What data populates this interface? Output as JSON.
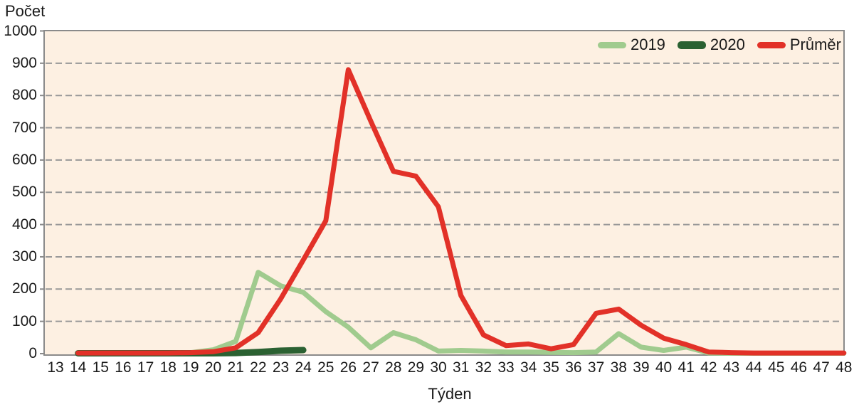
{
  "chart_data": {
    "type": "line",
    "title": "",
    "ylabel": "Počet",
    "xlabel": "Týden",
    "ylim": [
      0,
      1000
    ],
    "y_ticks": [
      0,
      100,
      200,
      300,
      400,
      500,
      600,
      700,
      800,
      900,
      1000
    ],
    "x_ticks": [
      13,
      14,
      15,
      16,
      17,
      18,
      19,
      20,
      21,
      22,
      23,
      24,
      25,
      26,
      27,
      28,
      29,
      30,
      31,
      32,
      33,
      34,
      35,
      36,
      37,
      38,
      39,
      40,
      41,
      42,
      43,
      44,
      45,
      46,
      47,
      48
    ],
    "grid": "horizontal-dashed",
    "legend_position": "top-right-inside",
    "plot_bg": "#fdf0e2",
    "border_color": "#8a8a8a",
    "grid_color": "#989898",
    "text_color": "#1a1a1a",
    "series": [
      {
        "name": "2019",
        "color": "#a0cb8e",
        "line_width": 7,
        "x": [
          14,
          15,
          16,
          17,
          18,
          19,
          20,
          21,
          22,
          23,
          24,
          25,
          26,
          27,
          28,
          29,
          30,
          31,
          32,
          33,
          34,
          35,
          36,
          37,
          38,
          39,
          40,
          41,
          42,
          43,
          44,
          45,
          46,
          47,
          48
        ],
        "values": [
          1,
          1,
          1,
          1,
          1,
          3,
          12,
          38,
          252,
          210,
          190,
          130,
          82,
          18,
          65,
          43,
          8,
          10,
          8,
          5,
          5,
          4,
          3,
          5,
          62,
          20,
          10,
          20,
          2,
          1,
          1,
          1,
          1,
          1,
          1
        ]
      },
      {
        "name": "2020",
        "color": "#2b6132",
        "line_width": 9,
        "x": [
          14,
          15,
          16,
          17,
          18,
          19,
          20,
          21,
          22,
          23,
          24
        ],
        "values": [
          1,
          1,
          1,
          1,
          1,
          1,
          1,
          2,
          5,
          9,
          11
        ]
      },
      {
        "name": "Průměr",
        "color": "#e23128",
        "line_width": 7,
        "x": [
          14,
          15,
          16,
          17,
          18,
          19,
          20,
          21,
          22,
          23,
          24,
          25,
          26,
          27,
          28,
          29,
          30,
          31,
          32,
          33,
          34,
          35,
          36,
          37,
          38,
          39,
          40,
          41,
          42,
          43,
          44,
          45,
          46,
          47,
          48
        ],
        "values": [
          2,
          2,
          2,
          2,
          2,
          3,
          6,
          18,
          65,
          170,
          290,
          412,
          880,
          720,
          565,
          550,
          455,
          180,
          58,
          25,
          30,
          15,
          28,
          125,
          138,
          88,
          48,
          28,
          5,
          3,
          2,
          2,
          2,
          2,
          2
        ]
      }
    ]
  }
}
